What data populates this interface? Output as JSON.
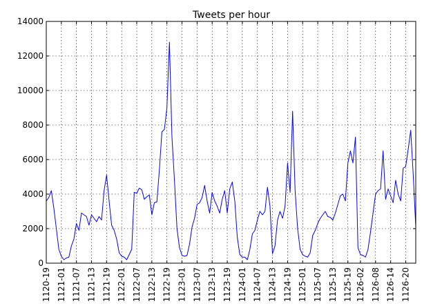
{
  "chart_data": {
    "type": "line",
    "title": "Tweets per hour",
    "xlabel": "",
    "ylabel": "",
    "ylim": [
      0,
      14000
    ],
    "yticks": [
      0,
      2000,
      4000,
      6000,
      8000,
      10000,
      12000,
      14000
    ],
    "xtick_labels": [
      "1120-19",
      "1121-01",
      "1121-07",
      "1121-13",
      "1121-19",
      "1122-01",
      "1122-07",
      "1122-13",
      "1122-19",
      "1123-01",
      "1123-07",
      "1123-13",
      "1123-19",
      "1124-01",
      "1124-07",
      "1124-13",
      "1124-19",
      "1125-01",
      "1125-07",
      "1125-13",
      "1125-19",
      "1126-02",
      "1126-08",
      "1126-14",
      "1126-20"
    ],
    "xtick_positions": [
      0,
      6,
      12,
      18,
      24,
      30,
      36,
      42,
      48,
      54,
      60,
      66,
      72,
      78,
      84,
      90,
      96,
      102,
      108,
      114,
      120,
      125,
      131,
      137,
      143
    ],
    "grid": true,
    "line_color": "#0000ff",
    "series": [
      {
        "values": [
          3600,
          3800,
          4200,
          3200,
          2000,
          800,
          400,
          200,
          300,
          350,
          1000,
          1400,
          2300,
          1900,
          2900,
          2800,
          2700,
          2200,
          2800,
          2600,
          2400,
          2700,
          2500,
          4200,
          5100,
          3600,
          2200,
          1900,
          1400,
          600,
          400,
          350,
          200,
          500,
          800,
          4100,
          4050,
          4350,
          4250,
          3700,
          3850,
          3950,
          2800,
          3500,
          3550,
          5400,
          7600,
          7750,
          9000,
          12800,
          7300,
          4800,
          2000,
          900,
          450,
          400,
          450,
          1100,
          2100,
          2600,
          3400,
          3500,
          3800,
          4500,
          3600,
          2900,
          4100,
          3600,
          3300,
          2900,
          3700,
          4200,
          2900,
          4300,
          4700,
          3600,
          1500,
          500,
          350,
          350,
          200,
          800,
          1700,
          1900,
          2500,
          3000,
          2800,
          3000,
          4400,
          3300,
          550,
          1000,
          2500,
          3000,
          2600,
          3300,
          5800,
          4100,
          8800,
          4200,
          2000,
          800,
          500,
          400,
          350,
          600,
          1600,
          1900,
          2300,
          2600,
          2800,
          3000,
          2700,
          2650,
          2500,
          2900,
          3400,
          3900,
          4000,
          3600,
          5800,
          6500,
          5800,
          7300,
          900,
          500,
          450,
          350,
          800,
          1800,
          2900,
          4000,
          4200,
          4300,
          6500,
          3700,
          4300,
          3900,
          3500,
          4800,
          4000,
          3600,
          5500,
          5600,
          6600,
          7700,
          5100,
          2100
        ]
      }
    ]
  }
}
